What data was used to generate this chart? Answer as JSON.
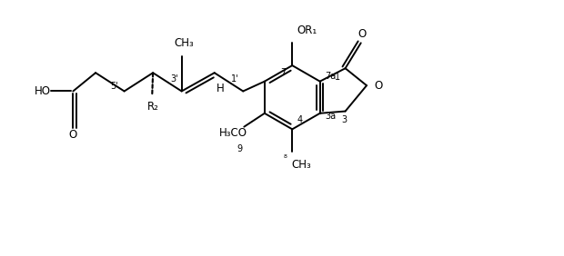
{
  "figsize": [
    6.2,
    2.82
  ],
  "dpi": 100,
  "background": "white",
  "bond_color": "black",
  "bond_lw": 1.4,
  "font_family": "DejaVu Sans",
  "xlim": [
    0,
    12.4
  ],
  "ylim": [
    -1.2,
    5.0
  ]
}
